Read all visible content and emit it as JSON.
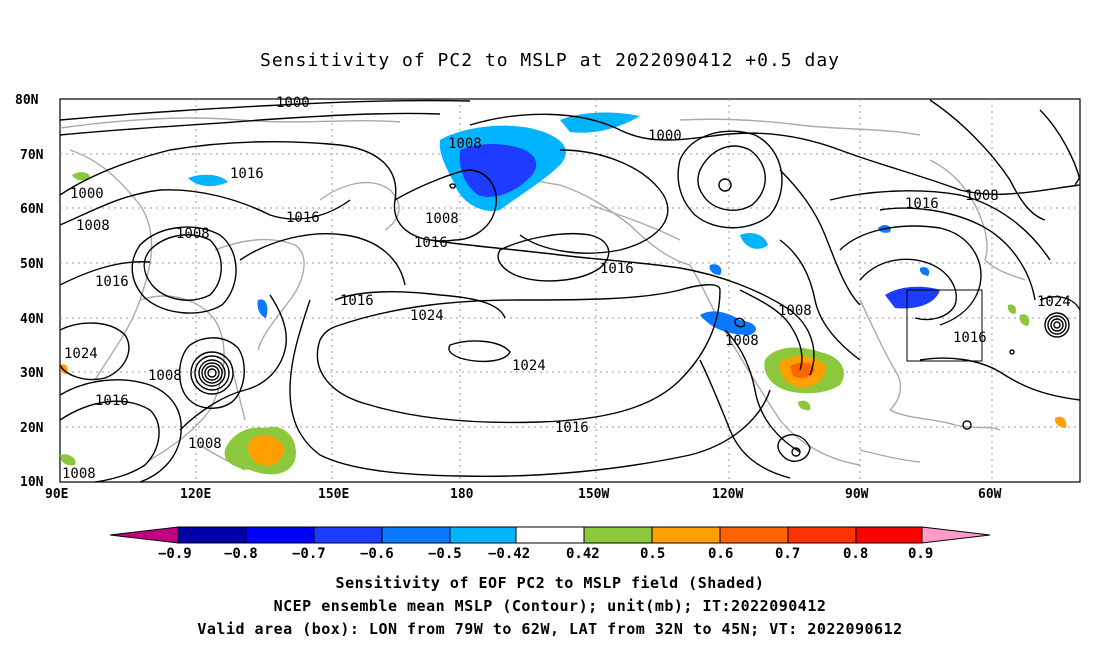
{
  "title": "Sensitivity of PC2 to MSLP at 2022090412 +0.5 day",
  "map": {
    "lon_labels": [
      "90E",
      "120E",
      "150E",
      "180",
      "150W",
      "120W",
      "90W",
      "60W"
    ],
    "lat_labels": [
      "80N",
      "70N",
      "60N",
      "50N",
      "40N",
      "30N",
      "20N",
      "10N"
    ],
    "contour_labels": [
      "1000",
      "1000",
      "1000",
      "1008",
      "1008",
      "1008",
      "1008",
      "1008",
      "1008",
      "1008",
      "1008",
      "1008",
      "1008",
      "1016",
      "1016",
      "1016",
      "1016",
      "1016",
      "1016",
      "1016",
      "1016",
      "1016",
      "1016",
      "1024",
      "1024",
      "1024",
      "1024"
    ],
    "box": {
      "lon_from": "79W",
      "lon_to": "62W",
      "lat_from": "32N",
      "lat_to": "45N"
    }
  },
  "colorbar": {
    "labels": [
      "−0.9",
      "−0.8",
      "−0.7",
      "−0.6",
      "−0.5",
      "−0.42",
      "0.42",
      "0.5",
      "0.6",
      "0.7",
      "0.8",
      "0.9"
    ],
    "colors": [
      "#c0007f",
      "#0000a8",
      "#0000ff",
      "#1e3cff",
      "#0a78ff",
      "#00b4ff",
      "#ffffff",
      "#8cc83c",
      "#ffa000",
      "#ff6400",
      "#ff3200",
      "#ff0000",
      "#ff9bc8"
    ]
  },
  "captions": {
    "line1": "Sensitivity of EOF PC2 to MSLP field (Shaded)",
    "line2": "NCEP ensemble mean MSLP (Contour); unit(mb); IT:2022090412",
    "line3": "Valid area (box): LON from 79W to 62W, LAT from 32N to 45N; VT: 2022090612"
  }
}
